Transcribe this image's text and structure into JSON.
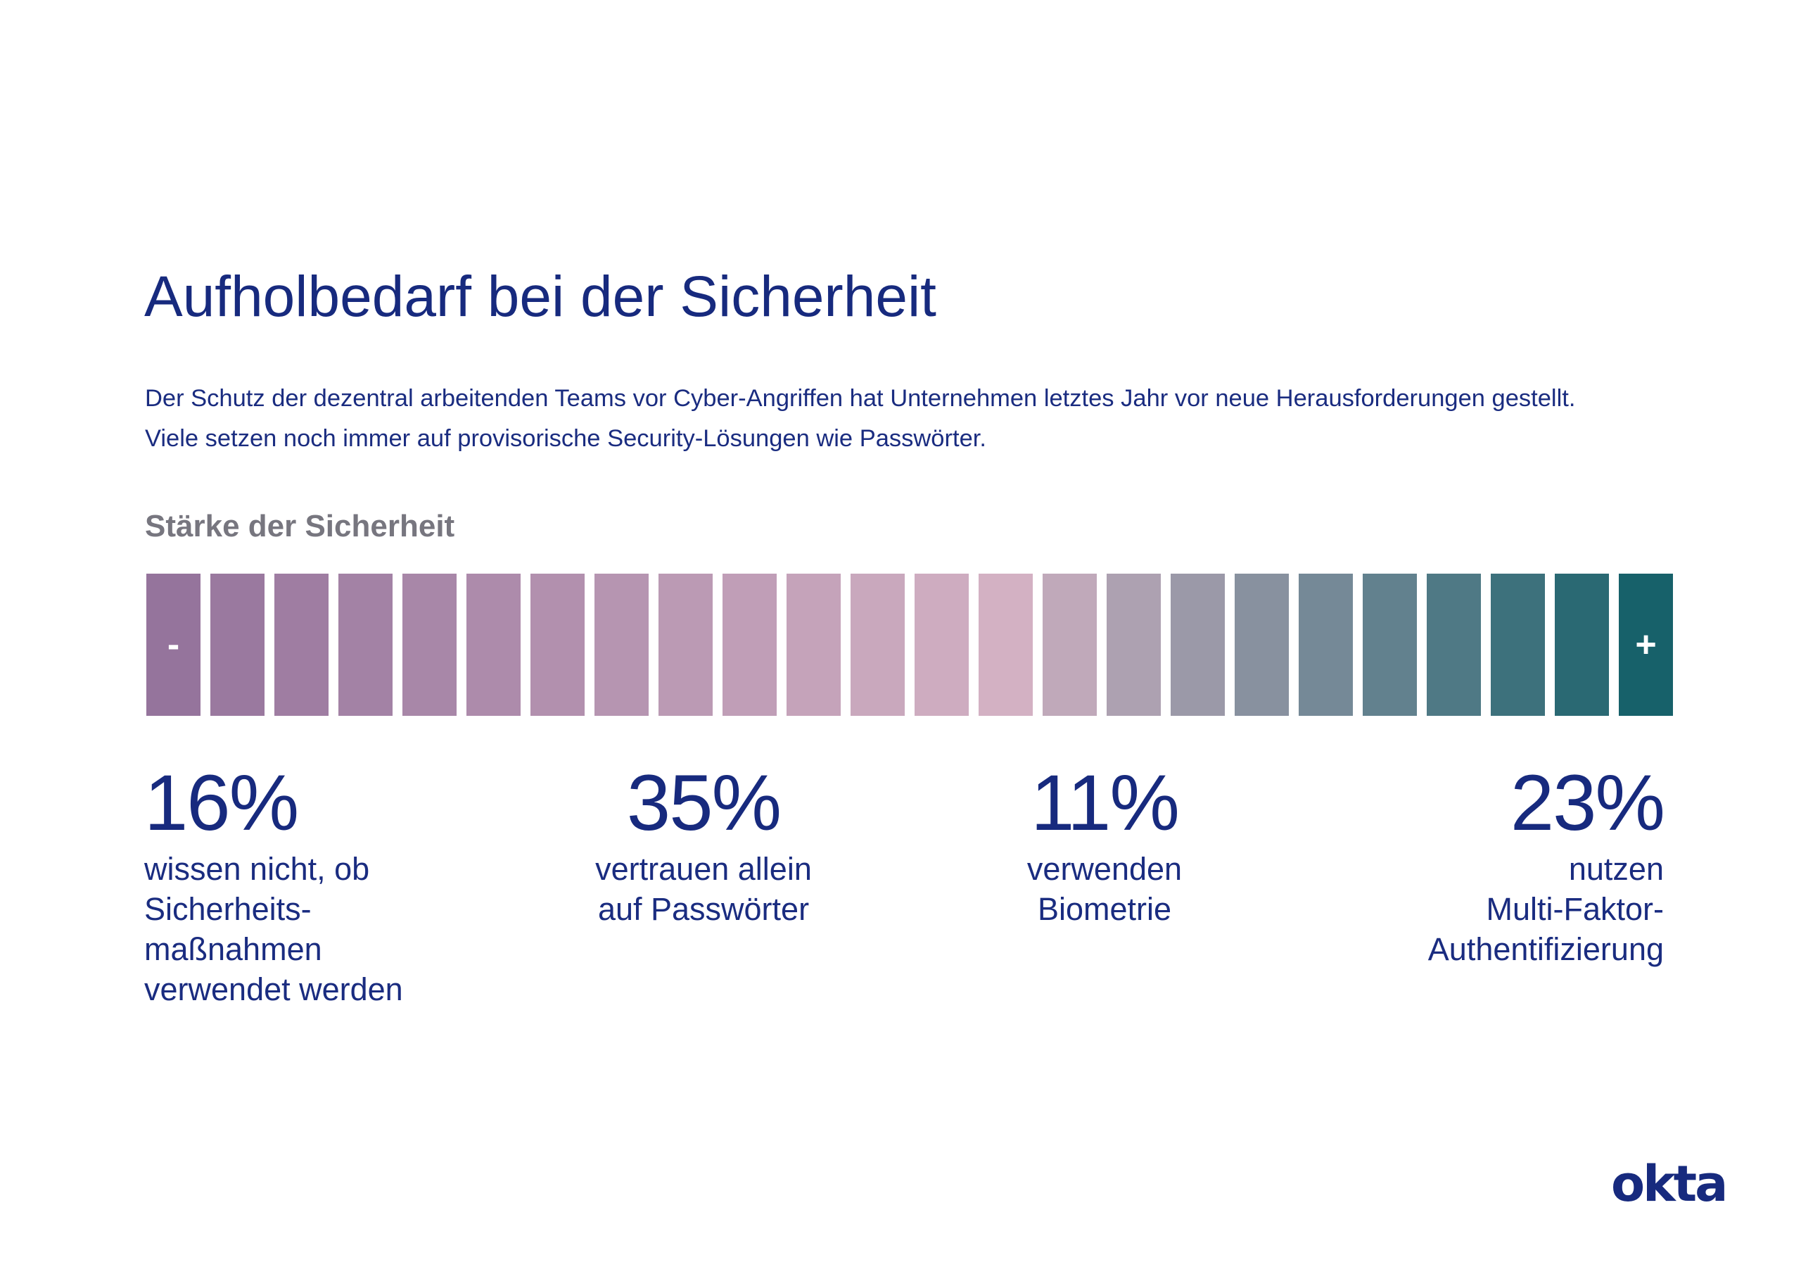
{
  "title": "Aufholbedarf bei der Sicherheit",
  "intro": {
    "line1": "Der Schutz der dezentral arbeitenden Teams vor Cyber-Angriffen hat Unternehmen letztes Jahr vor neue Herausforderungen gestellt.",
    "line2": "Viele setzen noch immer auf provisorische Security-Lösungen wie Passwörter."
  },
  "logo": "okta",
  "colors": {
    "scale_start": "#95749c",
    "scale_mid": "#d3b1c3",
    "scale_end": "#17616a",
    "text_primary": "#172a7e",
    "label_gray": "#77767f"
  },
  "chart_data": {
    "type": "bar",
    "title": "Stärke der Sicherheit",
    "scale": {
      "segments": 24,
      "min_label": "-",
      "max_label": "+"
    },
    "stats": [
      {
        "value": "16%",
        "label": "wissen nicht, ob\nSicherheits-\nmaßnahmen\nverwendet werden"
      },
      {
        "value": "35%",
        "label": "vertrauen allein\nauf Passwörter"
      },
      {
        "value": "11%",
        "label": "verwenden\nBiometrie"
      },
      {
        "value": "23%",
        "label": "nutzen\nMulti-Faktor-\nAuthentifizierung"
      }
    ]
  }
}
